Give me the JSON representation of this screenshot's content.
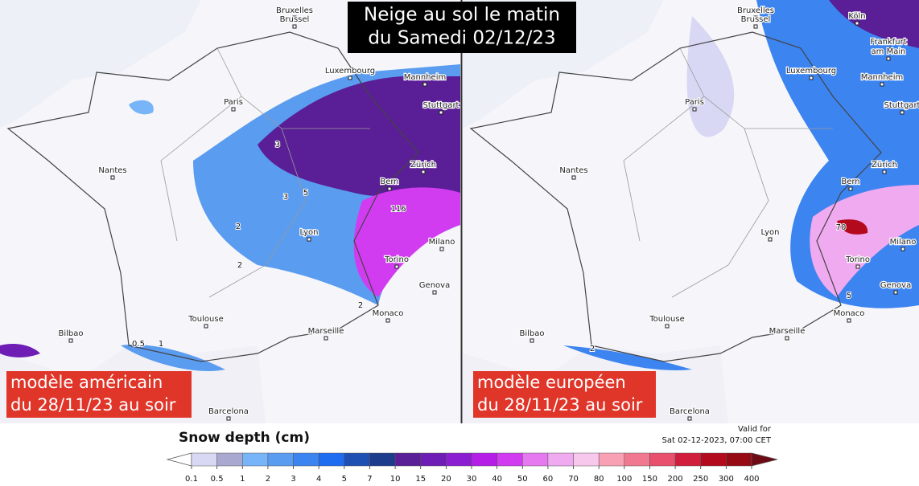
{
  "title": [
    "Neige au sol le matin",
    "du Samedi 02/12/23"
  ],
  "panels": [
    {
      "label": [
        "modèle américain",
        "du 28/11/23 au soir"
      ],
      "cities": [
        "Bruxelles",
        "Brussel",
        "Luxembourg",
        "Mannheim",
        "Stuttgart",
        "Paris",
        "Nantes",
        "Zürich",
        "Bern",
        "Lyon",
        "Milano",
        "Torino",
        "Genova",
        "Monaco",
        "Toulouse",
        "Marseille",
        "Bilbao",
        "Barcelona"
      ],
      "contour_labels": [
        "3",
        "3",
        "5",
        "2",
        "2",
        "2",
        "0.5",
        "1",
        "116"
      ]
    },
    {
      "label": [
        "modèle européen",
        "du 28/11/23 au soir"
      ],
      "cities": [
        "Bruxelles",
        "Brussel",
        "Luxembourg",
        "Mannheim",
        "Stuttgart",
        "Paris",
        "Nantes",
        "Zürich",
        "Bern",
        "Lyon",
        "Milano",
        "Torino",
        "Genova",
        "Monaco",
        "Toulouse",
        "Marseille",
        "Bilbao",
        "Barcelona",
        "Köln",
        "Frankfurt",
        "am Main"
      ],
      "contour_labels": [
        "70",
        "5",
        "2"
      ]
    }
  ],
  "legend": {
    "title": "Snow depth (cm)",
    "valid": [
      "Valid for",
      "Sat 02-12-2023, 07:00 CET"
    ],
    "ticks": [
      0.1,
      0.5,
      1,
      2,
      3,
      4,
      5,
      7,
      10,
      15,
      20,
      30,
      40,
      50,
      60,
      70,
      80,
      100,
      150,
      200,
      250,
      300,
      400
    ],
    "under_color": "#ffffff",
    "over_color": "#6e0a14",
    "colors": [
      "#d8d8f4",
      "#a8a8d0",
      "#78b4f8",
      "#5a9cf0",
      "#3c84f0",
      "#1e6cf0",
      "#1e50b4",
      "#1e3c8c",
      "#5a1e96",
      "#6e1eb4",
      "#8c1ed2",
      "#b41ee6",
      "#d23cf0",
      "#e678f0",
      "#f0aaf0",
      "#f8c8ec",
      "#f8a0b4",
      "#f07890",
      "#e8506e",
      "#d01e3c",
      "#b40a1e",
      "#960a14"
    ]
  }
}
